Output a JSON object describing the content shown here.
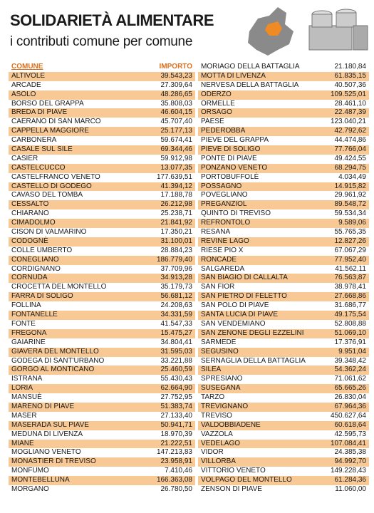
{
  "header": {
    "title": "SOLIDARIETÀ ALIMENTARE",
    "subtitle": "i contributi comune per comune"
  },
  "table": {
    "columns": [
      "COMUNE",
      "IMPORTO"
    ],
    "left": [
      [
        "ALTIVOLE",
        "39.543,23"
      ],
      [
        "ARCADE",
        "27.309,64"
      ],
      [
        "ASOLO",
        "48.286,65"
      ],
      [
        "BORSO DEL GRAPPA",
        "35.808,03"
      ],
      [
        "BREDA DI PIAVE",
        "46.604,15"
      ],
      [
        "CAERANO DI SAN MARCO",
        "45.707,40"
      ],
      [
        "CAPPELLA MAGGIORE",
        "25.177,13"
      ],
      [
        "CARBONERA",
        "59.674,41"
      ],
      [
        "CASALE SUL SILE",
        "69.344,46"
      ],
      [
        "CASIER",
        "59.912,98"
      ],
      [
        "CASTELCUCCO",
        "13.077,35"
      ],
      [
        "CASTELFRANCO VENETO",
        "177.639,51"
      ],
      [
        "CASTELLO DI GODEGO",
        "41.394,12"
      ],
      [
        "CAVASO DEL TOMBA",
        "17.188,78"
      ],
      [
        "CESSALTO",
        "26.212,98"
      ],
      [
        "CHIARANO",
        "25.238,71"
      ],
      [
        "CIMADOLMO",
        "21.841,92"
      ],
      [
        "CISON DI VALMARINO",
        "17.350,21"
      ],
      [
        "CODOGNÈ",
        "31.100,01"
      ],
      [
        "COLLE UMBERTO",
        "28.884,23"
      ],
      [
        "CONEGLIANO",
        "186.779,40"
      ],
      [
        "CORDIGNANO",
        "37.709,96"
      ],
      [
        "CORNUDA",
        "34.913,28"
      ],
      [
        "CROCETTA DEL MONTELLO",
        "35.179,73"
      ],
      [
        "FARRA DI SOLIGO",
        "56.681,12"
      ],
      [
        "FOLLINA",
        "24.208,63"
      ],
      [
        "FONTANELLE",
        "34.331,59"
      ],
      [
        "FONTE",
        "41.547,33"
      ],
      [
        "FREGONA",
        "15.475,27"
      ],
      [
        "GAIARINE",
        "34.804,41"
      ],
      [
        "GIAVERA DEL MONTELLO",
        "31.595,03"
      ],
      [
        "GODEGA DI SANT'URBANO",
        "33.221,88"
      ],
      [
        "GORGO AL MONTICANO",
        "25.460,59"
      ],
      [
        "ISTRANA",
        "55.430,43"
      ],
      [
        "LORIA",
        "62.664,90"
      ],
      [
        "MANSUÈ",
        "27.752,95"
      ],
      [
        "MARENO DI PIAVE",
        "51.383,74"
      ],
      [
        "MASER",
        "27.133,40"
      ],
      [
        "MASERADA SUL PIAVE",
        "50.941,71"
      ],
      [
        "MEDUNA DI LIVENZA",
        "18.970,39"
      ],
      [
        "MIANE",
        "21.222,51"
      ],
      [
        "MOGLIANO VENETO",
        "147.213,83"
      ],
      [
        "MONASTIER DI TREVISO",
        "23.958,91"
      ],
      [
        "MONFUMO",
        "7.410,46"
      ],
      [
        "MONTEBELLUNA",
        "166.363,08"
      ],
      [
        "MORGANO",
        "26.780,50"
      ]
    ],
    "right": [
      [
        "MORIAGO DELLA BATTAGLIA",
        "21.180,84"
      ],
      [
        "MOTTA DI LIVENZA",
        "61.835,15"
      ],
      [
        "NERVESA DELLA BATTAGLIA",
        "40.507,36"
      ],
      [
        "ODERZO",
        "109.525,01"
      ],
      [
        "ORMELLE",
        "28.461,10"
      ],
      [
        "ORSAGO",
        "22.487,39"
      ],
      [
        "PAESE",
        "123.040,21"
      ],
      [
        "PEDEROBBA",
        "42.792,62"
      ],
      [
        "PIEVE DEL GRAPPA",
        "44.474,86"
      ],
      [
        "PIEVE DI SOLIGO",
        "77.766,04"
      ],
      [
        "PONTE DI PIAVE",
        "49.424,55"
      ],
      [
        "PONZANO VENETO",
        "68.294,75"
      ],
      [
        "PORTOBUFFOLÈ",
        "4.034,49"
      ],
      [
        "POSSAGNO",
        "14.915,82"
      ],
      [
        "POVEGLIANO",
        "29.961,92"
      ],
      [
        "PREGANZIOL",
        "89.548,72"
      ],
      [
        "QUINTO DI TREVISO",
        "59.534,34"
      ],
      [
        "REFRONTOLO",
        "9.589,06"
      ],
      [
        "RESANA",
        "55.765,35"
      ],
      [
        "REVINE LAGO",
        "12.827,26"
      ],
      [
        "RIESE PIO X",
        "67.067,29"
      ],
      [
        "RONCADE",
        "77.952,40"
      ],
      [
        "SALGAREDA",
        "41.562,11"
      ],
      [
        "SAN BIAGIO DI CALLALTA",
        "76.563,87"
      ],
      [
        "SAN FIOR",
        "38.978,41"
      ],
      [
        "SAN PIETRO DI FELETTO",
        "27.668,86"
      ],
      [
        "SAN POLO DI PIAVE",
        "31.686,77"
      ],
      [
        "SANTA LUCIA DI PIAVE",
        "49.175,54"
      ],
      [
        "SAN VENDEMIANO",
        "52.808,88"
      ],
      [
        "SAN ZENONE DEGLI EZZELINI",
        "51.069,10"
      ],
      [
        "SARMEDE",
        "17.376,91"
      ],
      [
        "SEGUSINO",
        "9.951,04"
      ],
      [
        "SERNAGLIA DELLA BATTAGLIA",
        "39.348,42"
      ],
      [
        "SILEA",
        "54.362,24"
      ],
      [
        "SPRESIANO",
        "71.061,62"
      ],
      [
        "SUSEGANA",
        "65.665,26"
      ],
      [
        "TARZO",
        "26.830,04"
      ],
      [
        "TREVIGNANO",
        "67.964,36"
      ],
      [
        "TREVISO",
        "450.627,64"
      ],
      [
        "VALDOBBIADENE",
        "60.618,64"
      ],
      [
        "VAZZOLA",
        "42.595,73"
      ],
      [
        "VEDELAGO",
        "107.084,41"
      ],
      [
        "VIDOR",
        "24.385,38"
      ],
      [
        "VILLORBA",
        "94.992,70"
      ],
      [
        "VITTORIO VENETO",
        "149.228,43"
      ],
      [
        "VOLPAGO DEL MONTELLO",
        "61.284,36"
      ],
      [
        "ZENSON DI PIAVE",
        "11.060,00"
      ]
    ]
  }
}
